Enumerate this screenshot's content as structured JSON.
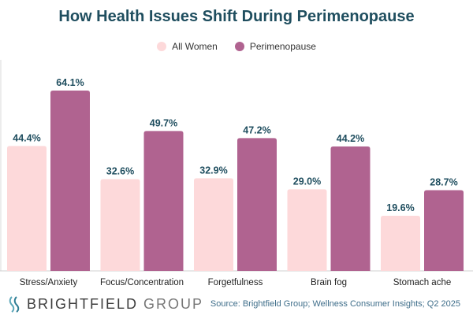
{
  "title": "How Health Issues Shift During Perimenopause",
  "legend": [
    {
      "label": "All Women",
      "color": "#fdd9da"
    },
    {
      "label": "Perimenopause",
      "color": "#b06390"
    }
  ],
  "chart_data": {
    "type": "bar",
    "categories": [
      "Stress/Anxiety",
      "Focus/Concentration",
      "Forgetfulness",
      "Brain fog",
      "Stomach ache"
    ],
    "series": [
      {
        "name": "All Women",
        "values": [
          44.4,
          32.6,
          32.9,
          29.0,
          19.6
        ],
        "labels": [
          "44.4%",
          "32.6%",
          "32.9%",
          "29.0%",
          "19.6%"
        ],
        "color": "#fdd9da"
      },
      {
        "name": "Perimenopause",
        "values": [
          64.1,
          49.7,
          47.2,
          44.2,
          28.7
        ],
        "labels": [
          "64.1%",
          "49.7%",
          "47.2%",
          "44.2%",
          "28.7%"
        ],
        "color": "#b06390"
      }
    ],
    "ylim": [
      0,
      75
    ],
    "title": "How Health Issues Shift During Perimenopause",
    "xlabel": "",
    "ylabel": "",
    "grid": false,
    "legend_position": "top-center",
    "label_color": "#1f4e5f"
  },
  "footer": {
    "logo_bright": "BRIGHTFIELD",
    "logo_group": "GROUP",
    "source": "Source: Brightfield Group; Wellness Consumer Insights;  Q2 2025"
  }
}
